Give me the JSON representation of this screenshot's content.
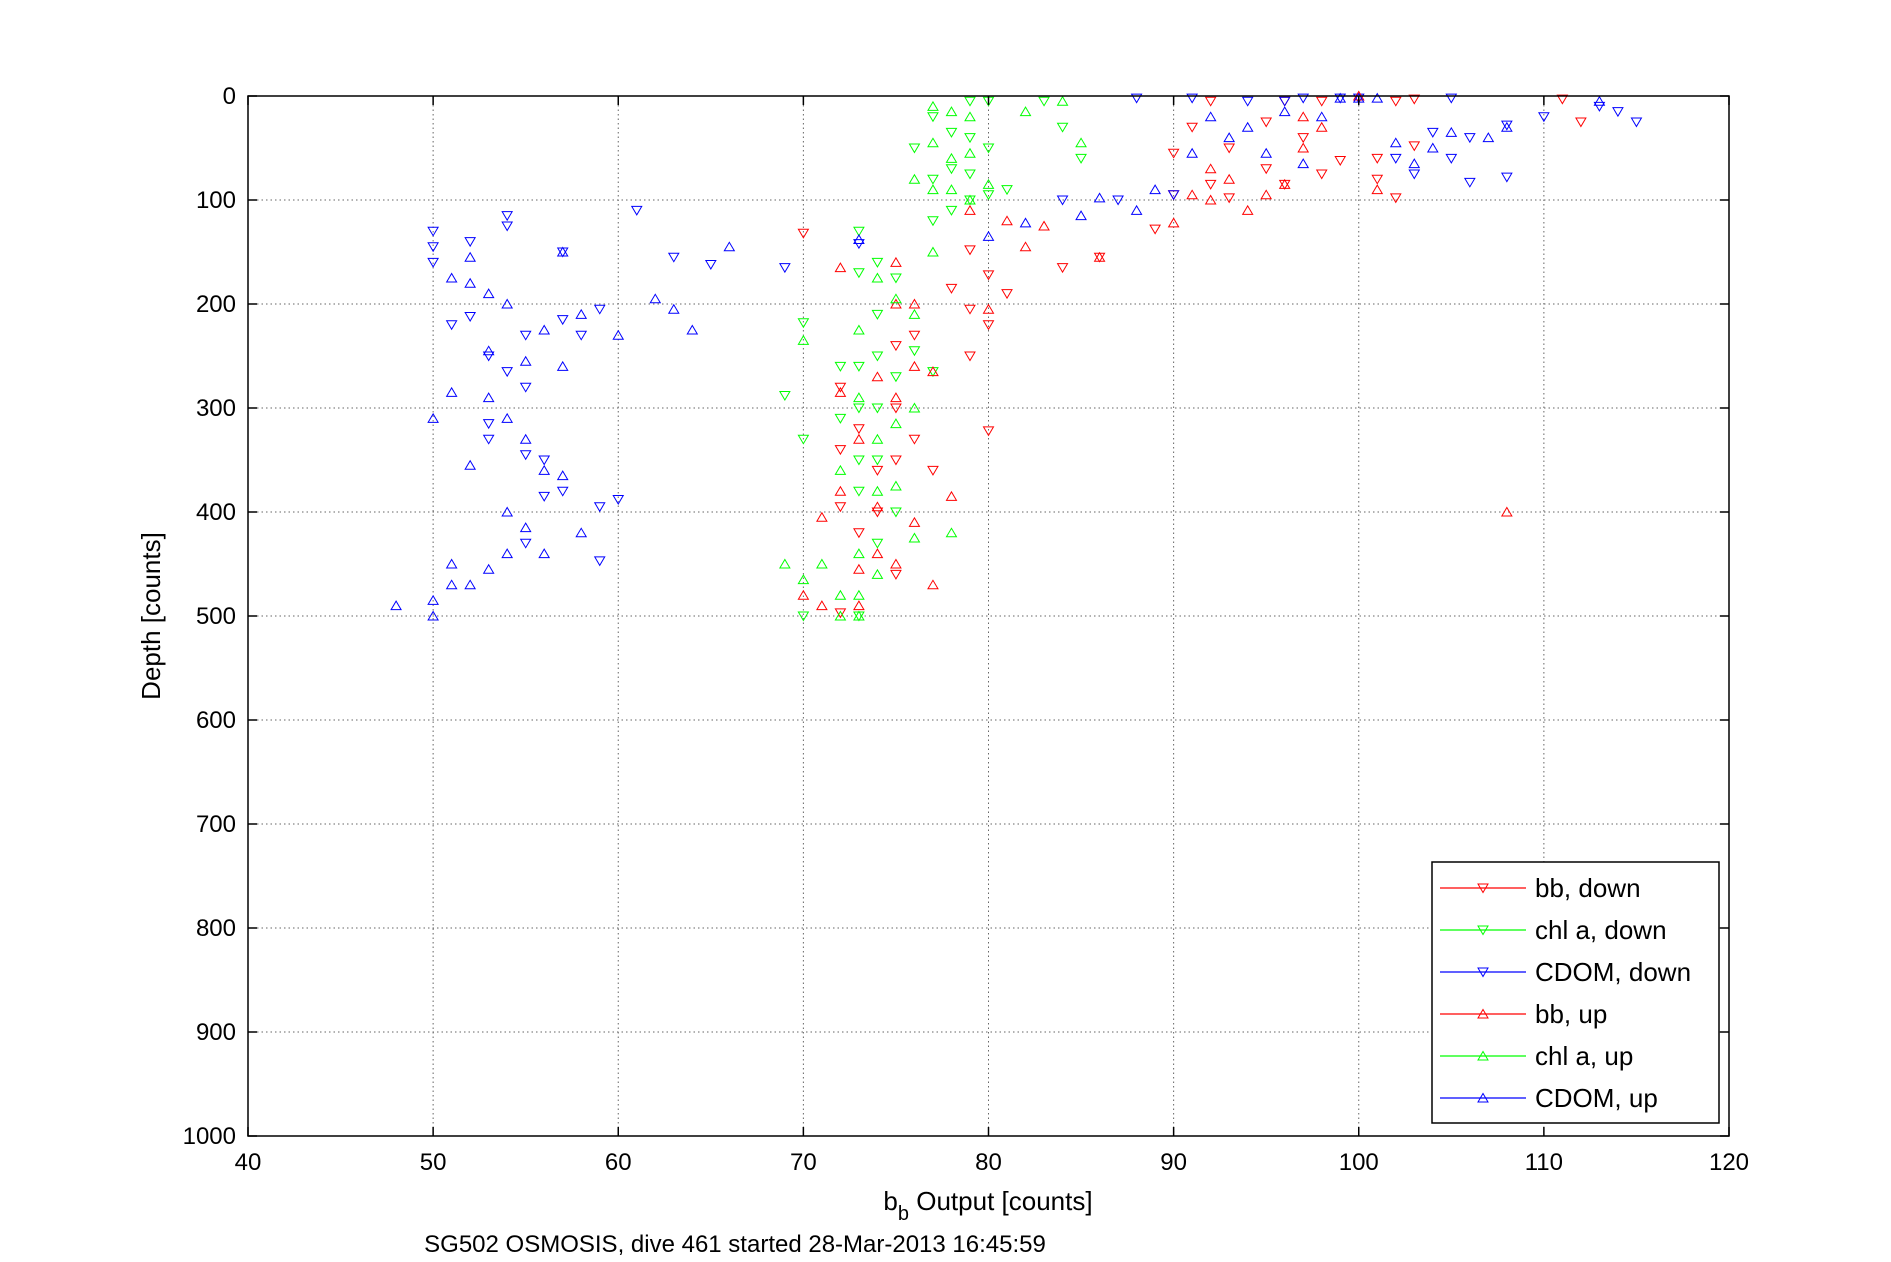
{
  "chart_data": {
    "type": "scatter",
    "xlabel": "b",
    "xlabel_sub": "b",
    "xlabel_rest": " Output [counts]",
    "ylabel": "Depth [counts]",
    "caption": "SG502 OSMOSIS, dive 461 started 28-Mar-2013 16:45:59",
    "xlim": [
      40,
      120
    ],
    "ylim": [
      0,
      1000
    ],
    "y_reversed": true,
    "grid": true,
    "legend_position": "bottom-right",
    "x_ticks": [
      "40",
      "50",
      "60",
      "70",
      "80",
      "90",
      "100",
      "110",
      "120"
    ],
    "y_ticks": [
      "0",
      "100",
      "200",
      "300",
      "400",
      "500",
      "600",
      "700",
      "800",
      "900",
      "1000"
    ],
    "colors": {
      "red": "#ff0000",
      "green": "#00ff00",
      "blue": "#0000ff"
    },
    "series": [
      {
        "name": "bb, down",
        "color": "#ff0000",
        "marker": "triangle-down",
        "points": [
          [
            70,
            132
          ],
          [
            72,
            280
          ],
          [
            72,
            340
          ],
          [
            72,
            395
          ],
          [
            72,
            497
          ],
          [
            73,
            320
          ],
          [
            73,
            420
          ],
          [
            74,
            360
          ],
          [
            74,
            400
          ],
          [
            75,
            240
          ],
          [
            75,
            300
          ],
          [
            75,
            350
          ],
          [
            75,
            460
          ],
          [
            76,
            230
          ],
          [
            76,
            330
          ],
          [
            77,
            360
          ],
          [
            78,
            185
          ],
          [
            79,
            205
          ],
          [
            79,
            250
          ],
          [
            80,
            172
          ],
          [
            80,
            220
          ],
          [
            80,
            322
          ],
          [
            81,
            190
          ],
          [
            79,
            148
          ],
          [
            84,
            165
          ],
          [
            86,
            155
          ],
          [
            89,
            128
          ],
          [
            90,
            95
          ],
          [
            90,
            55
          ],
          [
            91,
            30
          ],
          [
            92,
            85
          ],
          [
            92,
            5
          ],
          [
            93,
            50
          ],
          [
            93,
            98
          ],
          [
            95,
            25
          ],
          [
            95,
            70
          ],
          [
            96,
            5
          ],
          [
            96,
            85
          ],
          [
            97,
            40
          ],
          [
            98,
            5
          ],
          [
            98,
            75
          ],
          [
            99,
            62
          ],
          [
            101,
            60
          ],
          [
            101,
            80
          ],
          [
            102,
            98
          ],
          [
            103,
            48
          ],
          [
            103,
            3
          ],
          [
            111,
            3
          ],
          [
            112,
            25
          ],
          [
            102,
            5
          ]
        ]
      },
      {
        "name": "chl a, down",
        "color": "#00ff00",
        "marker": "triangle-down",
        "points": [
          [
            69,
            288
          ],
          [
            70,
            218
          ],
          [
            70,
            330
          ],
          [
            70,
            500
          ],
          [
            72,
            260
          ],
          [
            72,
            310
          ],
          [
            73,
            130
          ],
          [
            73,
            170
          ],
          [
            73,
            260
          ],
          [
            73,
            300
          ],
          [
            73,
            350
          ],
          [
            73,
            380
          ],
          [
            73,
            500
          ],
          [
            74,
            160
          ],
          [
            74,
            210
          ],
          [
            74,
            250
          ],
          [
            74,
            300
          ],
          [
            74,
            350
          ],
          [
            74,
            430
          ],
          [
            75,
            175
          ],
          [
            75,
            270
          ],
          [
            75,
            400
          ],
          [
            76,
            50
          ],
          [
            77,
            20
          ],
          [
            77,
            80
          ],
          [
            77,
            120
          ],
          [
            78,
            35
          ],
          [
            78,
            70
          ],
          [
            78,
            110
          ],
          [
            79,
            5
          ],
          [
            79,
            40
          ],
          [
            79,
            75
          ],
          [
            79,
            100
          ],
          [
            80,
            5
          ],
          [
            80,
            50
          ],
          [
            80,
            95
          ],
          [
            81,
            90
          ],
          [
            83,
            5
          ],
          [
            84,
            30
          ],
          [
            85,
            60
          ],
          [
            77,
            265
          ],
          [
            76,
            245
          ]
        ]
      },
      {
        "name": "CDOM, down",
        "color": "#0000ff",
        "marker": "triangle-down",
        "points": [
          [
            50,
            130
          ],
          [
            50,
            145
          ],
          [
            50,
            160
          ],
          [
            51,
            220
          ],
          [
            52,
            140
          ],
          [
            52,
            212
          ],
          [
            53,
            250
          ],
          [
            53,
            315
          ],
          [
            53,
            330
          ],
          [
            54,
            115
          ],
          [
            54,
            125
          ],
          [
            54,
            265
          ],
          [
            55,
            230
          ],
          [
            55,
            280
          ],
          [
            55,
            345
          ],
          [
            55,
            430
          ],
          [
            56,
            350
          ],
          [
            56,
            385
          ],
          [
            57,
            150
          ],
          [
            57,
            215
          ],
          [
            57,
            380
          ],
          [
            58,
            230
          ],
          [
            59,
            205
          ],
          [
            59,
            395
          ],
          [
            59,
            447
          ],
          [
            60,
            388
          ],
          [
            61,
            110
          ],
          [
            63,
            155
          ],
          [
            65,
            162
          ],
          [
            69,
            165
          ],
          [
            73,
            142
          ],
          [
            84,
            100
          ],
          [
            87,
            100
          ],
          [
            88,
            2
          ],
          [
            90,
            95
          ],
          [
            91,
            2
          ],
          [
            94,
            5
          ],
          [
            96,
            5
          ],
          [
            97,
            2
          ],
          [
            99,
            2
          ],
          [
            100,
            2
          ],
          [
            102,
            60
          ],
          [
            103,
            75
          ],
          [
            104,
            35
          ],
          [
            105,
            60
          ],
          [
            105,
            2
          ],
          [
            106,
            40
          ],
          [
            106,
            83
          ],
          [
            108,
            28
          ],
          [
            108,
            78
          ],
          [
            110,
            20
          ],
          [
            113,
            10
          ],
          [
            114,
            15
          ],
          [
            115,
            25
          ]
        ]
      },
      {
        "name": "bb, up",
        "color": "#ff0000",
        "marker": "triangle-up",
        "points": [
          [
            70,
            480
          ],
          [
            71,
            405
          ],
          [
            71,
            490
          ],
          [
            72,
            165
          ],
          [
            72,
            285
          ],
          [
            72,
            380
          ],
          [
            73,
            330
          ],
          [
            73,
            455
          ],
          [
            73,
            490
          ],
          [
            74,
            270
          ],
          [
            74,
            395
          ],
          [
            74,
            440
          ],
          [
            75,
            160
          ],
          [
            75,
            200
          ],
          [
            75,
            290
          ],
          [
            75,
            450
          ],
          [
            76,
            200
          ],
          [
            76,
            260
          ],
          [
            76,
            410
          ],
          [
            77,
            265
          ],
          [
            77,
            470
          ],
          [
            78,
            385
          ],
          [
            79,
            110
          ],
          [
            80,
            205
          ],
          [
            81,
            120
          ],
          [
            82,
            145
          ],
          [
            83,
            125
          ],
          [
            86,
            155
          ],
          [
            90,
            122
          ],
          [
            91,
            95
          ],
          [
            92,
            70
          ],
          [
            92,
            100
          ],
          [
            93,
            80
          ],
          [
            94,
            110
          ],
          [
            95,
            95
          ],
          [
            96,
            85
          ],
          [
            97,
            20
          ],
          [
            97,
            50
          ],
          [
            98,
            30
          ],
          [
            100,
            0
          ],
          [
            101,
            90
          ],
          [
            108,
            400
          ]
        ]
      },
      {
        "name": "chl a, up",
        "color": "#00ff00",
        "marker": "triangle-up",
        "points": [
          [
            69,
            450
          ],
          [
            70,
            235
          ],
          [
            70,
            465
          ],
          [
            71,
            450
          ],
          [
            72,
            360
          ],
          [
            72,
            480
          ],
          [
            72,
            500
          ],
          [
            73,
            225
          ],
          [
            73,
            290
          ],
          [
            73,
            440
          ],
          [
            73,
            480
          ],
          [
            73,
            500
          ],
          [
            74,
            175
          ],
          [
            74,
            330
          ],
          [
            74,
            380
          ],
          [
            74,
            460
          ],
          [
            75,
            195
          ],
          [
            75,
            315
          ],
          [
            75,
            375
          ],
          [
            76,
            210
          ],
          [
            76,
            300
          ],
          [
            76,
            425
          ],
          [
            76,
            80
          ],
          [
            77,
            10
          ],
          [
            77,
            45
          ],
          [
            77,
            90
          ],
          [
            77,
            150
          ],
          [
            78,
            15
          ],
          [
            78,
            60
          ],
          [
            78,
            90
          ],
          [
            78,
            420
          ],
          [
            79,
            20
          ],
          [
            79,
            55
          ],
          [
            79,
            100
          ],
          [
            80,
            85
          ],
          [
            82,
            15
          ],
          [
            84,
            5
          ],
          [
            85,
            45
          ]
        ]
      },
      {
        "name": "CDOM, up",
        "color": "#0000ff",
        "marker": "triangle-up",
        "points": [
          [
            48,
            490
          ],
          [
            50,
            310
          ],
          [
            50,
            485
          ],
          [
            50,
            500
          ],
          [
            51,
            175
          ],
          [
            51,
            285
          ],
          [
            51,
            450
          ],
          [
            51,
            470
          ],
          [
            52,
            155
          ],
          [
            52,
            180
          ],
          [
            52,
            355
          ],
          [
            52,
            470
          ],
          [
            53,
            190
          ],
          [
            53,
            245
          ],
          [
            53,
            290
          ],
          [
            53,
            455
          ],
          [
            54,
            200
          ],
          [
            54,
            310
          ],
          [
            54,
            400
          ],
          [
            54,
            440
          ],
          [
            55,
            255
          ],
          [
            55,
            330
          ],
          [
            55,
            415
          ],
          [
            56,
            225
          ],
          [
            56,
            360
          ],
          [
            56,
            440
          ],
          [
            57,
            150
          ],
          [
            57,
            260
          ],
          [
            57,
            365
          ],
          [
            58,
            210
          ],
          [
            58,
            420
          ],
          [
            60,
            230
          ],
          [
            62,
            195
          ],
          [
            63,
            205
          ],
          [
            64,
            225
          ],
          [
            66,
            145
          ],
          [
            73,
            138
          ],
          [
            80,
            135
          ],
          [
            82,
            122
          ],
          [
            85,
            115
          ],
          [
            86,
            98
          ],
          [
            88,
            110
          ],
          [
            89,
            90
          ],
          [
            91,
            55
          ],
          [
            92,
            20
          ],
          [
            93,
            40
          ],
          [
            94,
            30
          ],
          [
            95,
            55
          ],
          [
            96,
            15
          ],
          [
            97,
            65
          ],
          [
            98,
            20
          ],
          [
            99,
            2
          ],
          [
            100,
            2
          ],
          [
            101,
            2
          ],
          [
            102,
            45
          ],
          [
            103,
            65
          ],
          [
            104,
            50
          ],
          [
            105,
            35
          ],
          [
            107,
            40
          ],
          [
            108,
            30
          ],
          [
            113,
            5
          ]
        ]
      }
    ]
  }
}
